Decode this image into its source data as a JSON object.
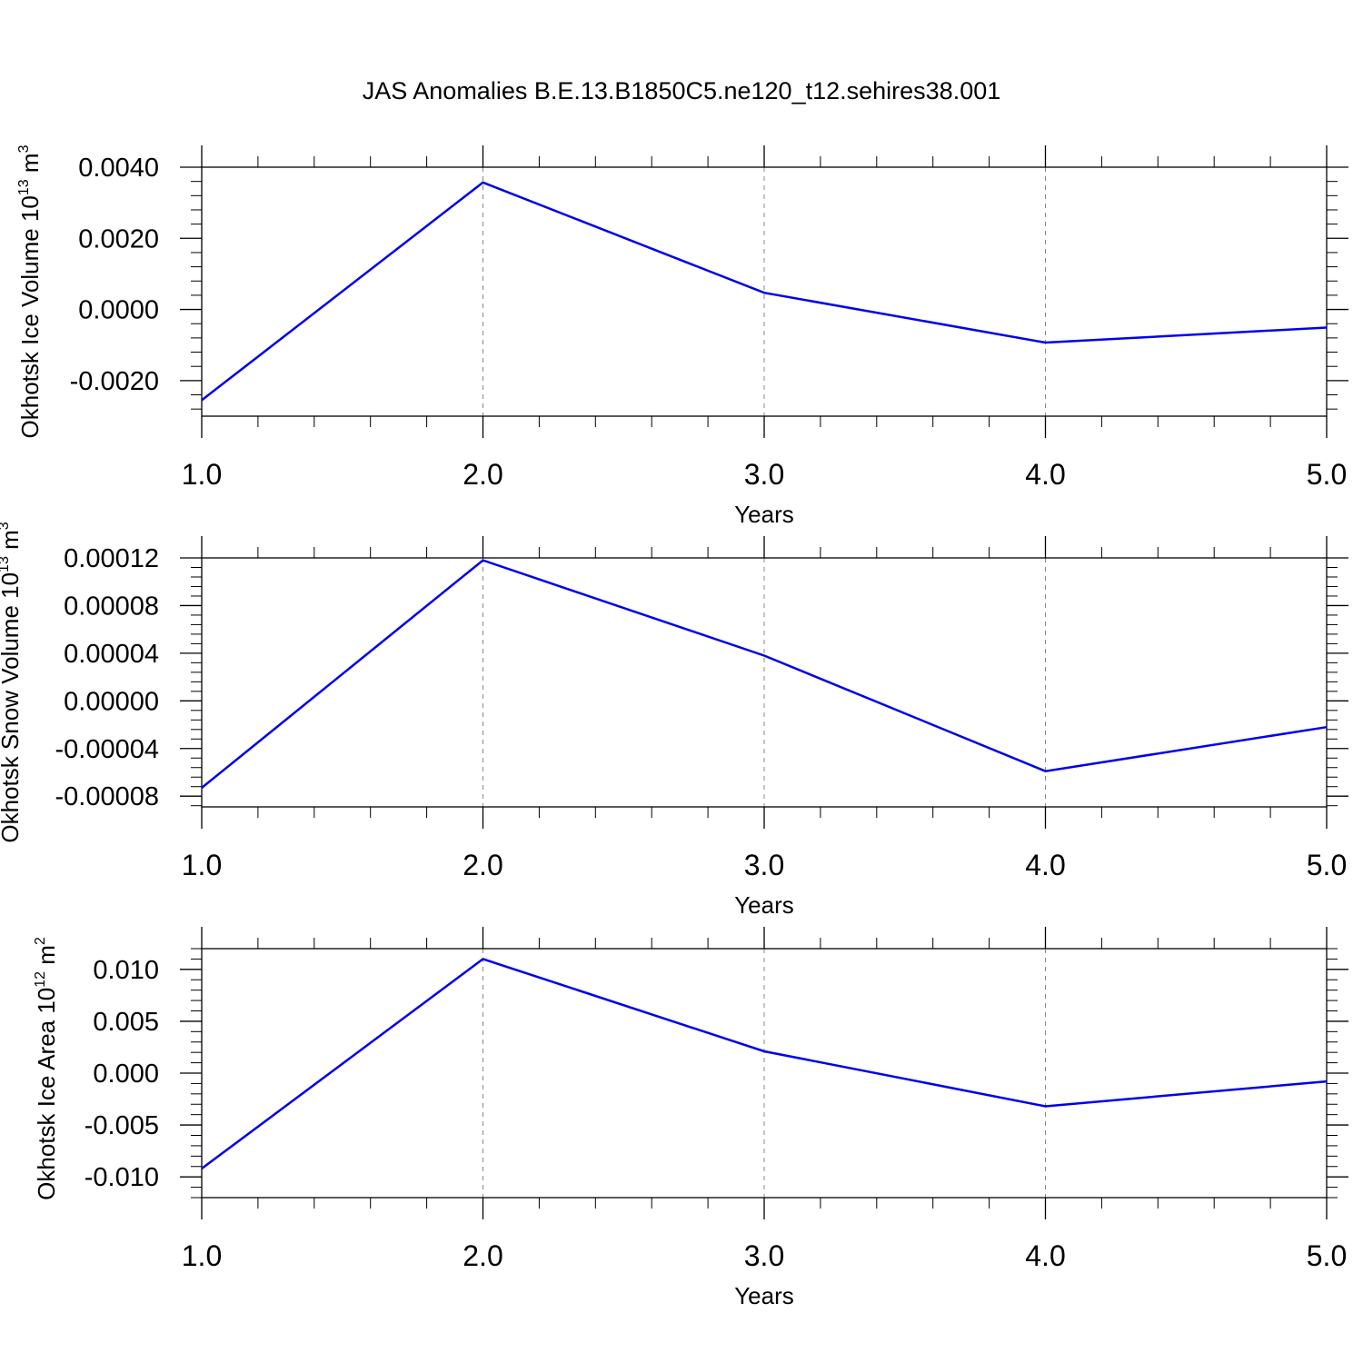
{
  "chart_data": [
    {
      "type": "line",
      "title": "JAS Anomalies B.E.13.B1850C5.ne120_t12.sehires38.001",
      "ylabel": "Okhotsk Ice Volume",
      "ylabel_unit_base": "10",
      "ylabel_unit_exp": "13",
      "ylabel_unit_name": "m",
      "ylabel_unit_name_exp": "3",
      "xlabel": "Years",
      "xlim": [
        1.0,
        5.0
      ],
      "ylim": [
        -0.003,
        0.004
      ],
      "x_ticks": [
        "1.0",
        "2.0",
        "3.0",
        "4.0",
        "5.0"
      ],
      "y_ticks": [
        {
          "value": 0.004,
          "label": "0.0040"
        },
        {
          "value": 0.002,
          "label": "0.0020"
        },
        {
          "value": 0.0,
          "label": "0.0000"
        },
        {
          "value": -0.002,
          "label": "-0.0020"
        }
      ],
      "grid": "vertical dashed",
      "line_color": "#0000ee",
      "series": [
        {
          "x": [
            1.0,
            2.0,
            3.0,
            4.0,
            5.0
          ],
          "values": [
            -0.00255,
            0.00357,
            0.00047,
            -0.00093,
            -0.00051
          ]
        }
      ]
    },
    {
      "type": "line",
      "ylabel": "Okhotsk Snow Volume",
      "ylabel_unit_base": "10",
      "ylabel_unit_exp": "13",
      "ylabel_unit_name": "m",
      "ylabel_unit_name_exp": "3",
      "xlabel": "Years",
      "xlim": [
        1.0,
        5.0
      ],
      "ylim": [
        -8.9e-05,
        0.00012
      ],
      "x_ticks": [
        "1.0",
        "2.0",
        "3.0",
        "4.0",
        "5.0"
      ],
      "y_ticks": [
        {
          "value": 0.00012,
          "label": "0.00012"
        },
        {
          "value": 8e-05,
          "label": "0.00008"
        },
        {
          "value": 4e-05,
          "label": "0.00004"
        },
        {
          "value": 0.0,
          "label": "0.00000"
        },
        {
          "value": -4e-05,
          "label": "-0.00004"
        },
        {
          "value": -8e-05,
          "label": "-0.00008"
        }
      ],
      "grid": "vertical dashed",
      "line_color": "#0000ee",
      "series": [
        {
          "x": [
            1.0,
            2.0,
            3.0,
            4.0,
            5.0
          ],
          "values": [
            -7.3e-05,
            0.000118,
            3.8e-05,
            -5.9e-05,
            -2.2e-05
          ]
        }
      ]
    },
    {
      "type": "line",
      "ylabel": "Okhotsk Ice Area",
      "ylabel_unit_base": "10",
      "ylabel_unit_exp": "12",
      "ylabel_unit_name": "m",
      "ylabel_unit_name_exp": "2",
      "xlabel": "Years",
      "xlim": [
        1.0,
        5.0
      ],
      "ylim": [
        -0.012,
        0.012
      ],
      "x_ticks": [
        "1.0",
        "2.0",
        "3.0",
        "4.0",
        "5.0"
      ],
      "y_ticks": [
        {
          "value": 0.01,
          "label": "0.010"
        },
        {
          "value": 0.005,
          "label": "0.005"
        },
        {
          "value": 0.0,
          "label": "0.000"
        },
        {
          "value": -0.005,
          "label": "-0.005"
        },
        {
          "value": -0.01,
          "label": "-0.010"
        }
      ],
      "grid": "vertical dashed",
      "line_color": "#0000ee",
      "series": [
        {
          "x": [
            1.0,
            2.0,
            3.0,
            4.0,
            5.0
          ],
          "values": [
            -0.0092,
            0.011,
            0.0021,
            -0.0032,
            -0.0008
          ]
        }
      ]
    }
  ]
}
